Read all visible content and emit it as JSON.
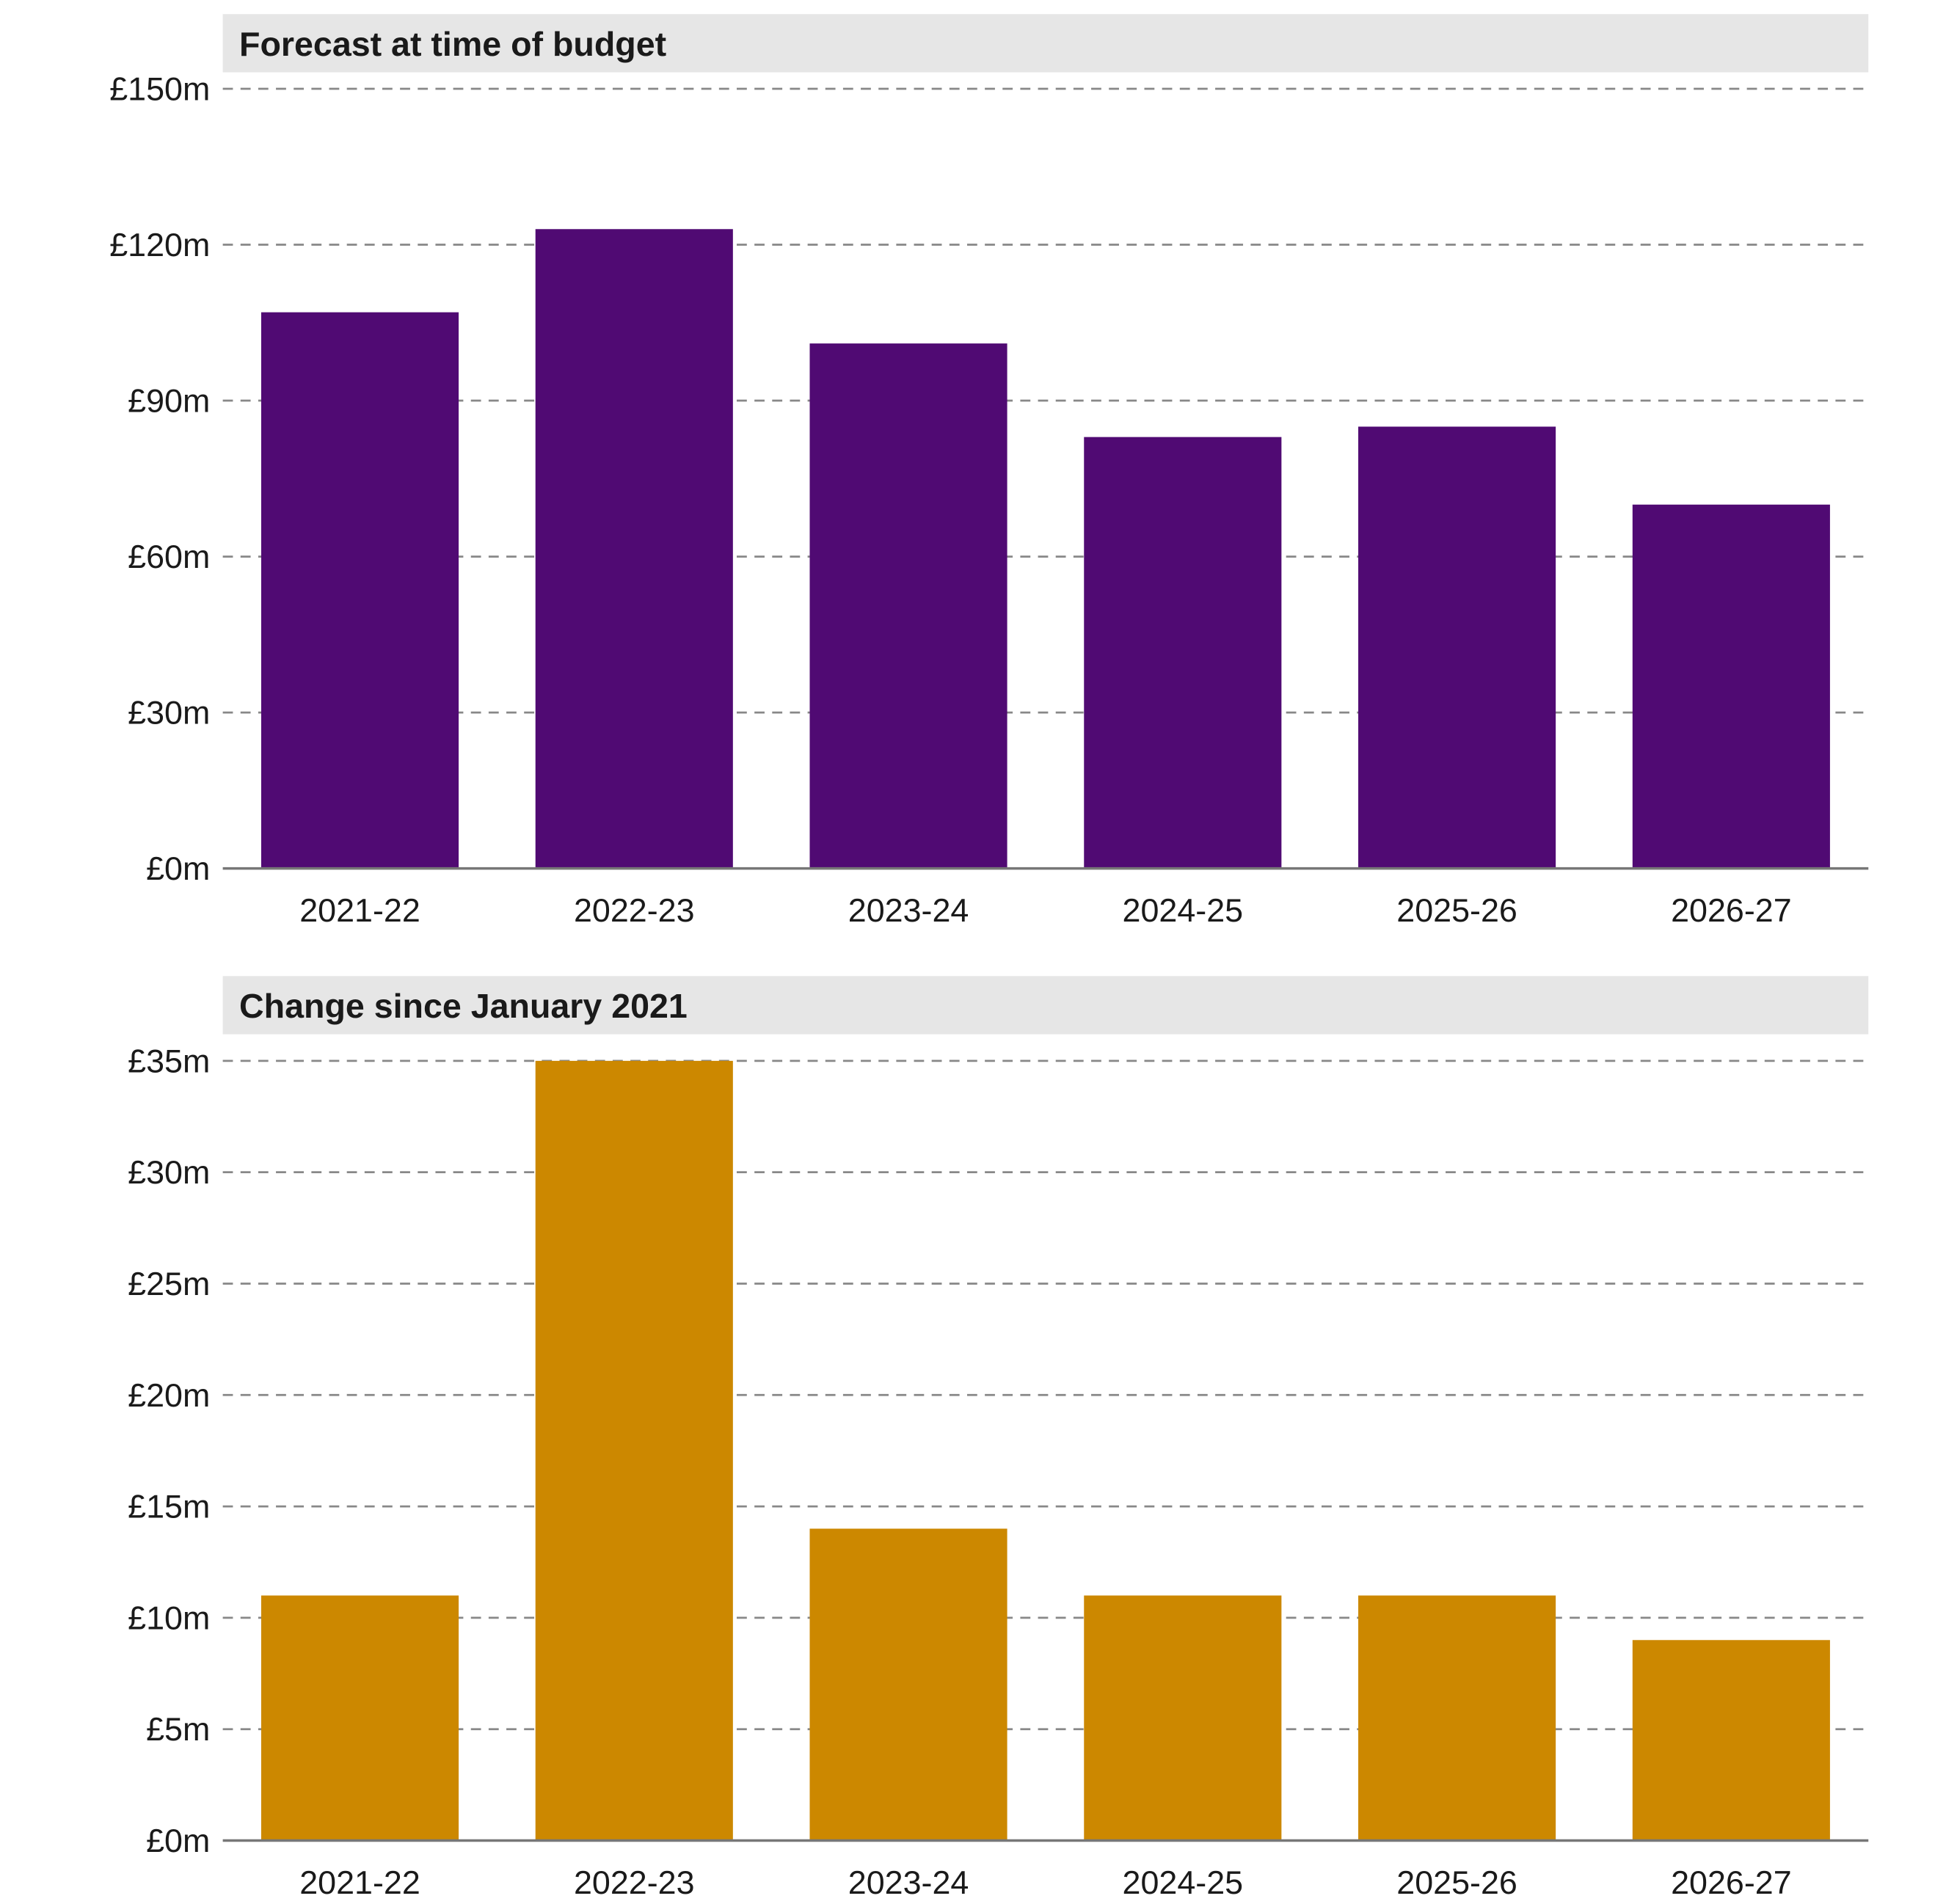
{
  "chart_data": [
    {
      "type": "bar",
      "title": "Forecast at time of budget",
      "categories": [
        "2021-22",
        "2022-23",
        "2023-24",
        "2024-25",
        "2025-26",
        "2026-27"
      ],
      "values": [
        107,
        123,
        101,
        83,
        85,
        70
      ],
      "unit": "£m",
      "ylim": [
        0,
        150
      ],
      "yticks": [
        0,
        30,
        60,
        90,
        120,
        150
      ],
      "ytick_labels": [
        "£0m",
        "£30m",
        "£60m",
        "£90m",
        "£120m",
        "£150m"
      ],
      "grid": true,
      "color": "#500a73"
    },
    {
      "type": "bar",
      "title": "Change since January 2021",
      "categories": [
        "2021-22",
        "2022-23",
        "2023-24",
        "2024-25",
        "2025-26",
        "2026-27"
      ],
      "values": [
        11,
        35,
        14,
        11,
        11,
        9
      ],
      "unit": "£m",
      "ylim": [
        0,
        35
      ],
      "yticks": [
        0,
        5,
        10,
        15,
        20,
        25,
        30,
        35
      ],
      "ytick_labels": [
        "£0m",
        "£5m",
        "£10m",
        "£15m",
        "£20m",
        "£25m",
        "£30m",
        "£35m"
      ],
      "grid": true,
      "color": "#cc8800"
    }
  ]
}
